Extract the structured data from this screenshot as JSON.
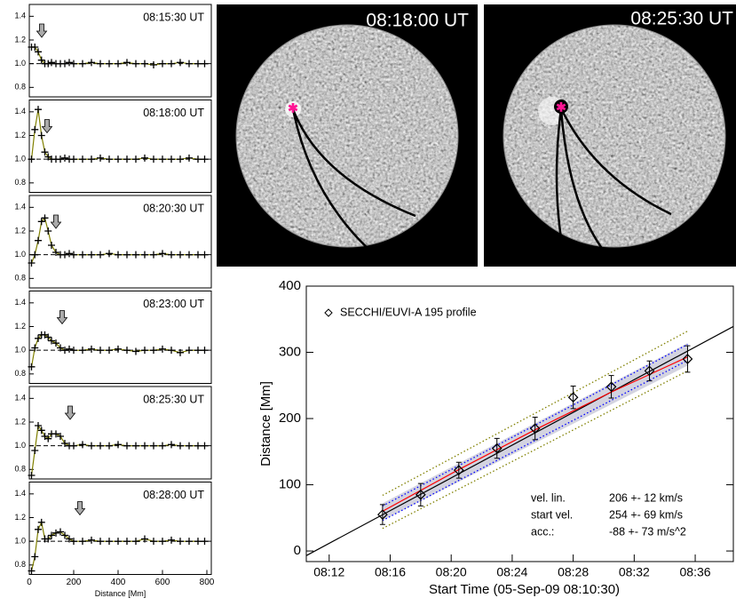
{
  "chart_data": [
    {
      "type": "line",
      "title": "08:15:30 UT",
      "color": "#808000",
      "marker_color": "#000000",
      "arrow": 56,
      "baseline": 1,
      "x": [
        10,
        25,
        40,
        55,
        70,
        85,
        100,
        120,
        140,
        160,
        180,
        200,
        240,
        280,
        320,
        360,
        400,
        440,
        480,
        520,
        560,
        600,
        640,
        680,
        720,
        760,
        790
      ],
      "values": [
        1.14,
        1.14,
        1.1,
        1.03,
        1.0,
        1.0,
        1.01,
        1.0,
        1.0,
        1.0,
        1.01,
        1.0,
        1.0,
        1.01,
        1.0,
        1.0,
        1.0,
        1.01,
        1.0,
        1.0,
        0.99,
        1.0,
        1.0,
        1.01,
        1.0,
        1.0,
        1.0
      ],
      "xlim": [
        0,
        820
      ],
      "ylim": [
        0.72,
        1.5
      ],
      "yticks": [
        0.8,
        {
          "value": 1,
          "label": "1.0"
        },
        1.2,
        1.4
      ]
    },
    {
      "type": "line",
      "title": "08:18:00 UT",
      "color": "#808000",
      "marker_color": "#000000",
      "arrow": 80,
      "baseline": 1,
      "x": [
        10,
        25,
        40,
        55,
        70,
        85,
        100,
        120,
        140,
        160,
        180,
        200,
        240,
        280,
        320,
        360,
        400,
        440,
        480,
        520,
        560,
        600,
        640,
        680,
        720,
        760,
        790
      ],
      "values": [
        1.0,
        1.25,
        1.42,
        1.2,
        1.06,
        1.02,
        1.0,
        1.0,
        1.0,
        1.01,
        1.0,
        1.0,
        1.0,
        1.0,
        1.01,
        1.0,
        1.0,
        1.0,
        1.0,
        1.01,
        1.0,
        1.0,
        1.0,
        1.0,
        1.01,
        1.0,
        1.0
      ],
      "xlim": [
        0,
        820
      ],
      "ylim": [
        0.72,
        1.5
      ],
      "yticks": [
        0.8,
        {
          "value": 1,
          "label": "1.0"
        },
        1.2,
        1.4
      ]
    },
    {
      "type": "line",
      "title": "08:20:30 UT",
      "color": "#808000",
      "marker_color": "#000000",
      "arrow": 120,
      "baseline": 1,
      "x": [
        10,
        25,
        40,
        55,
        70,
        85,
        100,
        120,
        140,
        160,
        180,
        200,
        240,
        280,
        320,
        360,
        400,
        440,
        480,
        520,
        560,
        600,
        640,
        680,
        720,
        760,
        790
      ],
      "values": [
        0.93,
        1.0,
        1.12,
        1.28,
        1.31,
        1.2,
        1.08,
        1.02,
        1.0,
        1.0,
        1.01,
        1.0,
        1.0,
        1.0,
        1.0,
        1.01,
        1.0,
        1.0,
        1.0,
        1.0,
        1.0,
        1.01,
        1.0,
        1.0,
        1.0,
        1.0,
        1.0
      ],
      "xlim": [
        0,
        820
      ],
      "ylim": [
        0.72,
        1.5
      ],
      "yticks": [
        0.8,
        {
          "value": 1,
          "label": "1.0"
        },
        1.2,
        1.4
      ]
    },
    {
      "type": "line",
      "title": "08:23:00 UT",
      "color": "#808000",
      "marker_color": "#000000",
      "arrow": 148,
      "baseline": 1,
      "x": [
        10,
        25,
        40,
        55,
        70,
        85,
        100,
        120,
        140,
        160,
        180,
        200,
        240,
        280,
        320,
        360,
        400,
        440,
        480,
        520,
        560,
        600,
        640,
        680,
        720,
        760,
        790
      ],
      "values": [
        0.86,
        1.02,
        1.1,
        1.13,
        1.13,
        1.11,
        1.08,
        1.06,
        1.02,
        1.0,
        1.01,
        1.0,
        1.0,
        1.01,
        1.0,
        1.0,
        1.01,
        1.0,
        0.99,
        1.0,
        1.0,
        1.01,
        1.0,
        0.98,
        1.0,
        1.0,
        1.0
      ],
      "xlim": [
        0,
        820
      ],
      "ylim": [
        0.72,
        1.5
      ],
      "yticks": [
        0.8,
        {
          "value": 1,
          "label": "1.0"
        },
        1.2,
        1.4
      ]
    },
    {
      "type": "line",
      "title": "08:25:30 UT",
      "color": "#808000",
      "marker_color": "#000000",
      "arrow": 184,
      "baseline": 1,
      "x": [
        10,
        25,
        40,
        55,
        70,
        85,
        100,
        120,
        140,
        160,
        180,
        200,
        240,
        280,
        320,
        360,
        400,
        440,
        480,
        520,
        560,
        600,
        640,
        680,
        720,
        760,
        790
      ],
      "values": [
        0.75,
        0.96,
        1.17,
        1.13,
        1.08,
        1.06,
        1.1,
        1.1,
        1.08,
        1.02,
        1.0,
        1.0,
        1.01,
        1.0,
        1.0,
        1.0,
        1.01,
        1.0,
        1.0,
        1.0,
        1.0,
        1.0,
        1.01,
        1.0,
        1.0,
        1.0,
        1.0
      ],
      "xlim": [
        0,
        820
      ],
      "ylim": [
        0.72,
        1.5
      ],
      "yticks": [
        0.8,
        {
          "value": 1,
          "label": "1.0"
        },
        1.2,
        1.4
      ]
    },
    {
      "type": "line",
      "title": "08:28:00 UT",
      "color": "#808000",
      "marker_color": "#000000",
      "arrow": 228,
      "baseline": 1,
      "x": [
        10,
        25,
        40,
        55,
        70,
        85,
        100,
        120,
        140,
        160,
        180,
        200,
        240,
        280,
        320,
        360,
        400,
        440,
        480,
        520,
        560,
        600,
        640,
        680,
        720,
        760,
        790
      ],
      "values": [
        0.75,
        0.87,
        1.1,
        1.16,
        1.02,
        1.02,
        1.05,
        1.07,
        1.08,
        1.05,
        1.02,
        1.0,
        1.0,
        1.01,
        1.0,
        1.0,
        1.0,
        1.0,
        1.0,
        1.02,
        1.0,
        1.0,
        1.01,
        1.0,
        1.0,
        1.0,
        1.0
      ],
      "xlim": [
        0,
        820
      ],
      "ylim": [
        0.72,
        1.5
      ],
      "yticks": [
        0.8,
        {
          "value": 1,
          "label": "1.0"
        },
        1.2,
        1.4
      ],
      "xticks": [
        0,
        200,
        400,
        600,
        800
      ],
      "xlabel": "Distance [Mm]"
    },
    {
      "type": "scatter",
      "xlabel": "Start Time (05-Sep-09 08:10:30)",
      "ylabel": "Distance [Mm]",
      "xlim": [
        10.5,
        38.5
      ],
      "ylim": [
        -16,
        400
      ],
      "xticks": [
        {
          "value": 12,
          "label": "08:12"
        },
        {
          "value": 16,
          "label": "08:16"
        },
        {
          "value": 20,
          "label": "08:20"
        },
        {
          "value": 24,
          "label": "08:24"
        },
        {
          "value": 28,
          "label": "08:28"
        },
        {
          "value": 32,
          "label": "08:32"
        },
        {
          "value": 36,
          "label": "08:36"
        }
      ],
      "yticks": [
        0,
        100,
        200,
        300,
        400
      ],
      "series": [
        {
          "name": "SECCHI/EUVI-A 195 profile",
          "color": "#000000",
          "x": [
            15.5,
            18,
            20.5,
            23,
            25.5,
            28,
            30.5,
            33,
            35.5
          ],
          "values": [
            55,
            85,
            122,
            155,
            185,
            232,
            248,
            272,
            290
          ],
          "errors": [
            15,
            17,
            12,
            15,
            17,
            17,
            17,
            15,
            20
          ]
        }
      ],
      "band": {
        "color": "#c8c8d8",
        "x": [
          15.5,
          35.5
        ],
        "lower": [
          46,
          280
        ],
        "upper": [
          72,
          314
        ]
      },
      "fits": [
        {
          "color": "#808000",
          "style": "dotted",
          "x": [
            15.5,
            35.5
          ],
          "values": [
            84,
            332
          ]
        },
        {
          "color": "#808000",
          "style": "dotted",
          "x": [
            15.5,
            35.5
          ],
          "values": [
            34,
            272
          ]
        },
        {
          "color": "#0000ff",
          "style": "dotted",
          "x": [
            15.5,
            35.5
          ],
          "values": [
            68,
            312
          ]
        },
        {
          "color": "#0000ff",
          "style": "dotted",
          "x": [
            15.5,
            35.5
          ],
          "values": [
            46,
            288
          ]
        },
        {
          "color": "#000000",
          "style": "solid",
          "x": [
            10.5,
            38.5
          ],
          "values": [
            -7,
            339
          ]
        },
        {
          "color": "#ff0000",
          "style": "solid",
          "x": [
            15.5,
            20.5,
            25.5,
            30.5,
            35.5
          ],
          "values": [
            60,
            123,
            183,
            240,
            293
          ]
        }
      ],
      "annotations": [
        [
          "vel. lin.",
          "206 +- 12 km/s"
        ],
        [
          "start vel.",
          "254 +- 69 km/s"
        ],
        [
          "acc.:",
          "-88 +- 73 m/s^2"
        ]
      ]
    }
  ],
  "images": [
    {
      "title": "08:18:00 UT"
    },
    {
      "title": "08:25:30 UT"
    }
  ]
}
